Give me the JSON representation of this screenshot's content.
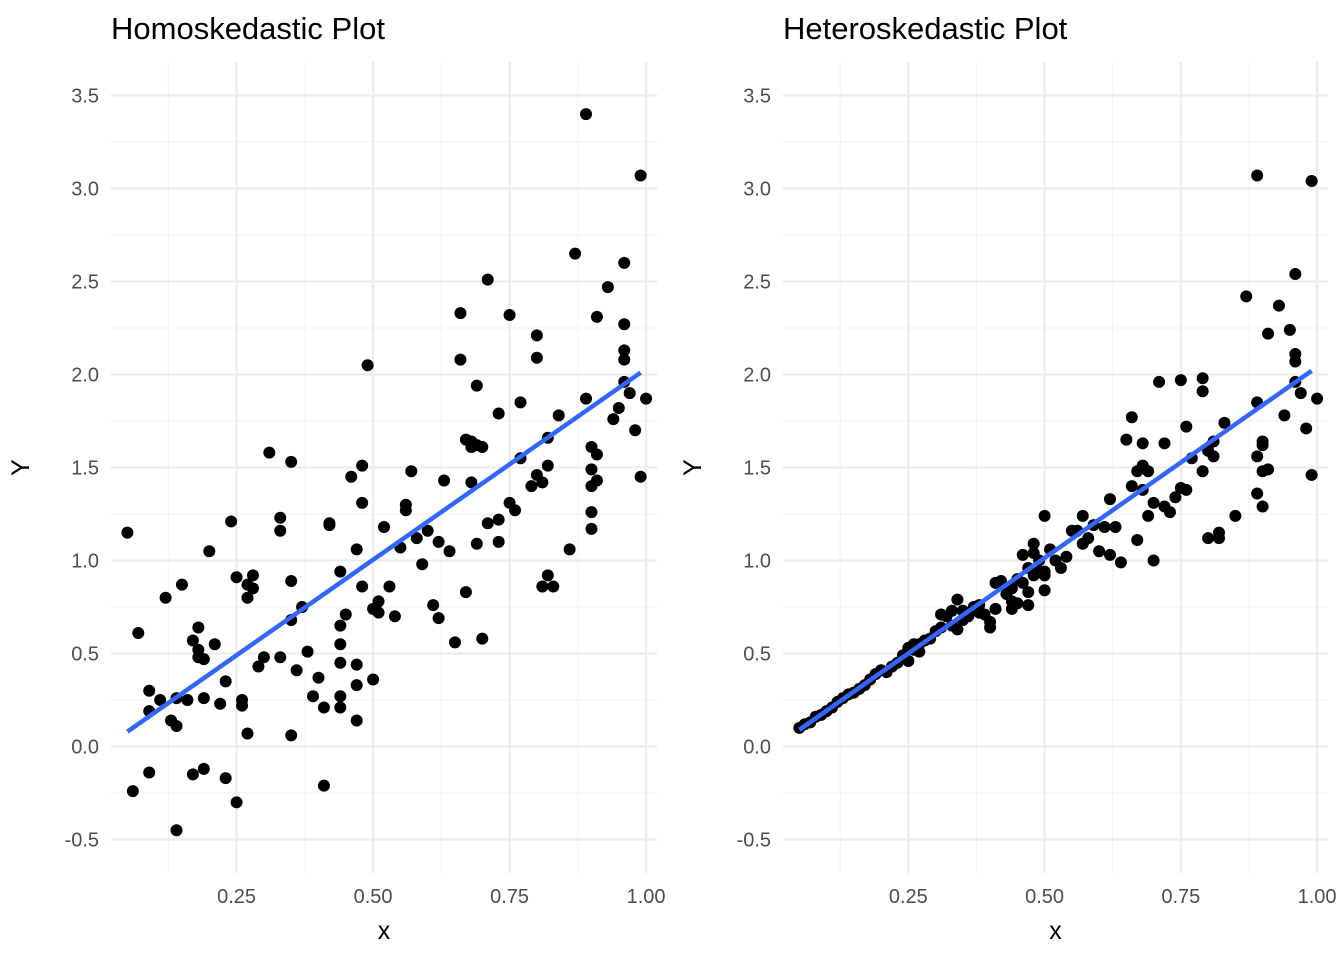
{
  "chart_data": [
    {
      "type": "scatter",
      "title": "Homoskedastic Plot",
      "xlabel": "x",
      "ylabel": "Y",
      "xlim": [
        0.02,
        1.02
      ],
      "ylim": [
        -0.68,
        3.68
      ],
      "x_ticks": [
        0.25,
        0.5,
        0.75,
        1.0
      ],
      "x_tick_labels": [
        "0.25",
        "0.50",
        "0.75",
        "1.00"
      ],
      "y_ticks": [
        -0.5,
        0.0,
        0.5,
        1.0,
        1.5,
        2.0,
        2.5,
        3.0,
        3.5
      ],
      "y_tick_labels": [
        "-0.5",
        "0.0",
        "0.5",
        "1.0",
        "1.5",
        "2.0",
        "2.5",
        "3.0",
        "3.5"
      ],
      "grid": true,
      "fit_line": {
        "color": "#3366ff",
        "x": [
          0.05,
          0.99
        ],
        "y": [
          0.08,
          2.01
        ]
      },
      "points": [
        [
          0.05,
          1.15
        ],
        [
          0.06,
          -0.24
        ],
        [
          0.07,
          0.61
        ],
        [
          0.09,
          0.3
        ],
        [
          0.09,
          0.19
        ],
        [
          0.09,
          -0.14
        ],
        [
          0.11,
          0.25
        ],
        [
          0.12,
          0.8
        ],
        [
          0.13,
          0.14
        ],
        [
          0.14,
          -0.45
        ],
        [
          0.14,
          0.26
        ],
        [
          0.14,
          0.11
        ],
        [
          0.15,
          0.87
        ],
        [
          0.16,
          0.25
        ],
        [
          0.17,
          0.57
        ],
        [
          0.17,
          -0.15
        ],
        [
          0.18,
          0.52
        ],
        [
          0.18,
          0.48
        ],
        [
          0.18,
          0.64
        ],
        [
          0.19,
          0.26
        ],
        [
          0.19,
          -0.12
        ],
        [
          0.19,
          0.47
        ],
        [
          0.2,
          1.05
        ],
        [
          0.21,
          0.55
        ],
        [
          0.22,
          0.23
        ],
        [
          0.23,
          0.35
        ],
        [
          0.23,
          -0.17
        ],
        [
          0.24,
          1.21
        ],
        [
          0.25,
          0.91
        ],
        [
          0.25,
          -0.3
        ],
        [
          0.26,
          0.22
        ],
        [
          0.26,
          0.25
        ],
        [
          0.27,
          0.07
        ],
        [
          0.27,
          0.8
        ],
        [
          0.27,
          0.87
        ],
        [
          0.28,
          0.92
        ],
        [
          0.28,
          0.85
        ],
        [
          0.29,
          0.43
        ],
        [
          0.3,
          0.48
        ],
        [
          0.31,
          1.58
        ],
        [
          0.33,
          1.16
        ],
        [
          0.33,
          0.48
        ],
        [
          0.33,
          1.23
        ],
        [
          0.35,
          0.06
        ],
        [
          0.35,
          1.53
        ],
        [
          0.35,
          0.68
        ],
        [
          0.35,
          0.89
        ],
        [
          0.36,
          0.41
        ],
        [
          0.37,
          0.75
        ],
        [
          0.38,
          0.51
        ],
        [
          0.39,
          0.27
        ],
        [
          0.4,
          0.37
        ],
        [
          0.41,
          -0.21
        ],
        [
          0.41,
          0.21
        ],
        [
          0.42,
          1.2
        ],
        [
          0.42,
          1.19
        ],
        [
          0.44,
          0.27
        ],
        [
          0.44,
          0.21
        ],
        [
          0.44,
          0.45
        ],
        [
          0.44,
          0.65
        ],
        [
          0.44,
          0.55
        ],
        [
          0.44,
          0.94
        ],
        [
          0.45,
          0.71
        ],
        [
          0.46,
          1.45
        ],
        [
          0.47,
          0.44
        ],
        [
          0.47,
          0.33
        ],
        [
          0.47,
          0.14
        ],
        [
          0.47,
          1.06
        ],
        [
          0.48,
          1.31
        ],
        [
          0.48,
          1.51
        ],
        [
          0.48,
          0.86
        ],
        [
          0.49,
          2.05
        ],
        [
          0.5,
          0.74
        ],
        [
          0.5,
          0.36
        ],
        [
          0.51,
          0.72
        ],
        [
          0.51,
          0.78
        ],
        [
          0.52,
          1.18
        ],
        [
          0.53,
          0.86
        ],
        [
          0.54,
          0.7
        ],
        [
          0.55,
          1.07
        ],
        [
          0.56,
          1.3
        ],
        [
          0.56,
          1.27
        ],
        [
          0.57,
          1.48
        ],
        [
          0.58,
          1.12
        ],
        [
          0.59,
          0.98
        ],
        [
          0.6,
          1.16
        ],
        [
          0.61,
          0.76
        ],
        [
          0.62,
          1.1
        ],
        [
          0.62,
          0.69
        ],
        [
          0.63,
          1.43
        ],
        [
          0.64,
          1.05
        ],
        [
          0.65,
          0.56
        ],
        [
          0.66,
          2.08
        ],
        [
          0.66,
          2.33
        ],
        [
          0.67,
          1.65
        ],
        [
          0.67,
          0.83
        ],
        [
          0.68,
          1.42
        ],
        [
          0.68,
          1.61
        ],
        [
          0.68,
          1.64
        ],
        [
          0.69,
          1.94
        ],
        [
          0.69,
          1.62
        ],
        [
          0.69,
          1.09
        ],
        [
          0.7,
          1.61
        ],
        [
          0.7,
          0.58
        ],
        [
          0.71,
          2.51
        ],
        [
          0.71,
          1.2
        ],
        [
          0.73,
          1.79
        ],
        [
          0.73,
          1.1
        ],
        [
          0.73,
          1.22
        ],
        [
          0.75,
          1.31
        ],
        [
          0.75,
          2.32
        ],
        [
          0.76,
          1.27
        ],
        [
          0.77,
          1.85
        ],
        [
          0.77,
          1.55
        ],
        [
          0.79,
          1.4
        ],
        [
          0.8,
          2.09
        ],
        [
          0.8,
          2.21
        ],
        [
          0.8,
          1.46
        ],
        [
          0.81,
          0.86
        ],
        [
          0.81,
          1.42
        ],
        [
          0.82,
          1.66
        ],
        [
          0.82,
          1.51
        ],
        [
          0.82,
          0.92
        ],
        [
          0.83,
          0.86
        ],
        [
          0.84,
          1.78
        ],
        [
          0.86,
          1.06
        ],
        [
          0.87,
          2.65
        ],
        [
          0.89,
          1.87
        ],
        [
          0.89,
          3.4
        ],
        [
          0.9,
          1.61
        ],
        [
          0.9,
          1.49
        ],
        [
          0.9,
          1.4
        ],
        [
          0.9,
          1.17
        ],
        [
          0.9,
          1.26
        ],
        [
          0.91,
          1.57
        ],
        [
          0.91,
          2.31
        ],
        [
          0.91,
          1.43
        ],
        [
          0.93,
          2.47
        ],
        [
          0.94,
          1.76
        ],
        [
          0.95,
          1.82
        ],
        [
          0.96,
          2.27
        ],
        [
          0.96,
          2.6
        ],
        [
          0.96,
          1.96
        ],
        [
          0.96,
          2.13
        ],
        [
          0.96,
          2.08
        ],
        [
          0.97,
          1.9
        ],
        [
          0.98,
          1.7
        ],
        [
          0.99,
          3.07
        ],
        [
          0.99,
          1.45
        ],
        [
          1.0,
          1.87
        ]
      ]
    },
    {
      "type": "scatter",
      "title": "Heteroskedastic Plot",
      "xlabel": "x",
      "ylabel": "Y",
      "xlim": [
        0.02,
        1.02
      ],
      "ylim": [
        -0.68,
        3.68
      ],
      "x_ticks": [
        0.25,
        0.5,
        0.75,
        1.0
      ],
      "x_tick_labels": [
        "0.25",
        "0.50",
        "0.75",
        "1.00"
      ],
      "y_ticks": [
        -0.5,
        0.0,
        0.5,
        1.0,
        1.5,
        2.0,
        2.5,
        3.0,
        3.5
      ],
      "y_tick_labels": [
        "-0.5",
        "0.0",
        "0.5",
        "1.0",
        "1.5",
        "2.0",
        "2.5",
        "3.0",
        "3.5"
      ],
      "grid": true,
      "fit_line": {
        "color": "#3366ff",
        "x": [
          0.05,
          0.99
        ],
        "y": [
          0.09,
          2.02
        ]
      },
      "points": [
        [
          0.05,
          0.1
        ],
        [
          0.06,
          0.12
        ],
        [
          0.07,
          0.13
        ],
        [
          0.08,
          0.16
        ],
        [
          0.09,
          0.17
        ],
        [
          0.1,
          0.19
        ],
        [
          0.11,
          0.21
        ],
        [
          0.12,
          0.24
        ],
        [
          0.13,
          0.26
        ],
        [
          0.14,
          0.28
        ],
        [
          0.15,
          0.29
        ],
        [
          0.16,
          0.31
        ],
        [
          0.17,
          0.33
        ],
        [
          0.18,
          0.36
        ],
        [
          0.19,
          0.39
        ],
        [
          0.2,
          0.41
        ],
        [
          0.21,
          0.4
        ],
        [
          0.22,
          0.43
        ],
        [
          0.23,
          0.45
        ],
        [
          0.24,
          0.49
        ],
        [
          0.25,
          0.53
        ],
        [
          0.25,
          0.46
        ],
        [
          0.26,
          0.52
        ],
        [
          0.26,
          0.55
        ],
        [
          0.27,
          0.55
        ],
        [
          0.27,
          0.51
        ],
        [
          0.28,
          0.57
        ],
        [
          0.29,
          0.58
        ],
        [
          0.3,
          0.62
        ],
        [
          0.31,
          0.71
        ],
        [
          0.31,
          0.64
        ],
        [
          0.32,
          0.7
        ],
        [
          0.33,
          0.73
        ],
        [
          0.33,
          0.65
        ],
        [
          0.34,
          0.79
        ],
        [
          0.34,
          0.63
        ],
        [
          0.35,
          0.68
        ],
        [
          0.35,
          0.73
        ],
        [
          0.36,
          0.7
        ],
        [
          0.37,
          0.75
        ],
        [
          0.38,
          0.72
        ],
        [
          0.38,
          0.76
        ],
        [
          0.39,
          0.71
        ],
        [
          0.4,
          0.67
        ],
        [
          0.4,
          0.64
        ],
        [
          0.41,
          0.88
        ],
        [
          0.41,
          0.74
        ],
        [
          0.42,
          0.89
        ],
        [
          0.43,
          0.82
        ],
        [
          0.44,
          0.74
        ],
        [
          0.44,
          0.78
        ],
        [
          0.44,
          0.85
        ],
        [
          0.45,
          0.77
        ],
        [
          0.45,
          0.9
        ],
        [
          0.46,
          0.88
        ],
        [
          0.46,
          1.03
        ],
        [
          0.47,
          0.76
        ],
        [
          0.47,
          0.83
        ],
        [
          0.47,
          0.96
        ],
        [
          0.48,
          1.09
        ],
        [
          0.48,
          1.04
        ],
        [
          0.48,
          0.92
        ],
        [
          0.49,
          0.94
        ],
        [
          0.49,
          1.0
        ],
        [
          0.5,
          0.84
        ],
        [
          0.5,
          0.92
        ],
        [
          0.5,
          1.24
        ],
        [
          0.5,
          0.94
        ],
        [
          0.51,
          1.06
        ],
        [
          0.52,
          1.0
        ],
        [
          0.53,
          0.96
        ],
        [
          0.54,
          1.02
        ],
        [
          0.55,
          1.16
        ],
        [
          0.56,
          1.16
        ],
        [
          0.57,
          1.09
        ],
        [
          0.57,
          1.24
        ],
        [
          0.58,
          1.12
        ],
        [
          0.59,
          1.19
        ],
        [
          0.6,
          1.05
        ],
        [
          0.61,
          1.18
        ],
        [
          0.62,
          1.03
        ],
        [
          0.62,
          1.33
        ],
        [
          0.63,
          1.18
        ],
        [
          0.64,
          0.99
        ],
        [
          0.65,
          1.65
        ],
        [
          0.66,
          1.77
        ],
        [
          0.66,
          1.4
        ],
        [
          0.67,
          1.48
        ],
        [
          0.67,
          1.11
        ],
        [
          0.68,
          1.63
        ],
        [
          0.68,
          1.38
        ],
        [
          0.68,
          1.51
        ],
        [
          0.69,
          1.48
        ],
        [
          0.69,
          1.24
        ],
        [
          0.7,
          1.31
        ],
        [
          0.7,
          1.0
        ],
        [
          0.71,
          1.96
        ],
        [
          0.72,
          1.29
        ],
        [
          0.72,
          1.63
        ],
        [
          0.73,
          1.26
        ],
        [
          0.74,
          1.34
        ],
        [
          0.75,
          1.39
        ],
        [
          0.75,
          1.97
        ],
        [
          0.76,
          1.38
        ],
        [
          0.76,
          1.72
        ],
        [
          0.77,
          1.55
        ],
        [
          0.79,
          1.48
        ],
        [
          0.79,
          1.98
        ],
        [
          0.79,
          1.91
        ],
        [
          0.8,
          1.12
        ],
        [
          0.8,
          1.59
        ],
        [
          0.81,
          1.64
        ],
        [
          0.81,
          1.56
        ],
        [
          0.82,
          1.15
        ],
        [
          0.82,
          1.12
        ],
        [
          0.83,
          1.74
        ],
        [
          0.85,
          1.24
        ],
        [
          0.87,
          2.42
        ],
        [
          0.89,
          1.85
        ],
        [
          0.89,
          3.07
        ],
        [
          0.89,
          1.36
        ],
        [
          0.89,
          1.56
        ],
        [
          0.9,
          1.62
        ],
        [
          0.9,
          1.48
        ],
        [
          0.9,
          1.29
        ],
        [
          0.9,
          1.64
        ],
        [
          0.91,
          2.22
        ],
        [
          0.91,
          1.49
        ],
        [
          0.93,
          2.37
        ],
        [
          0.94,
          1.78
        ],
        [
          0.95,
          2.24
        ],
        [
          0.96,
          2.54
        ],
        [
          0.96,
          1.96
        ],
        [
          0.96,
          2.11
        ],
        [
          0.96,
          2.07
        ],
        [
          0.97,
          1.9
        ],
        [
          0.98,
          1.71
        ],
        [
          0.99,
          3.04
        ],
        [
          0.99,
          1.46
        ],
        [
          1.0,
          1.87
        ]
      ]
    }
  ]
}
